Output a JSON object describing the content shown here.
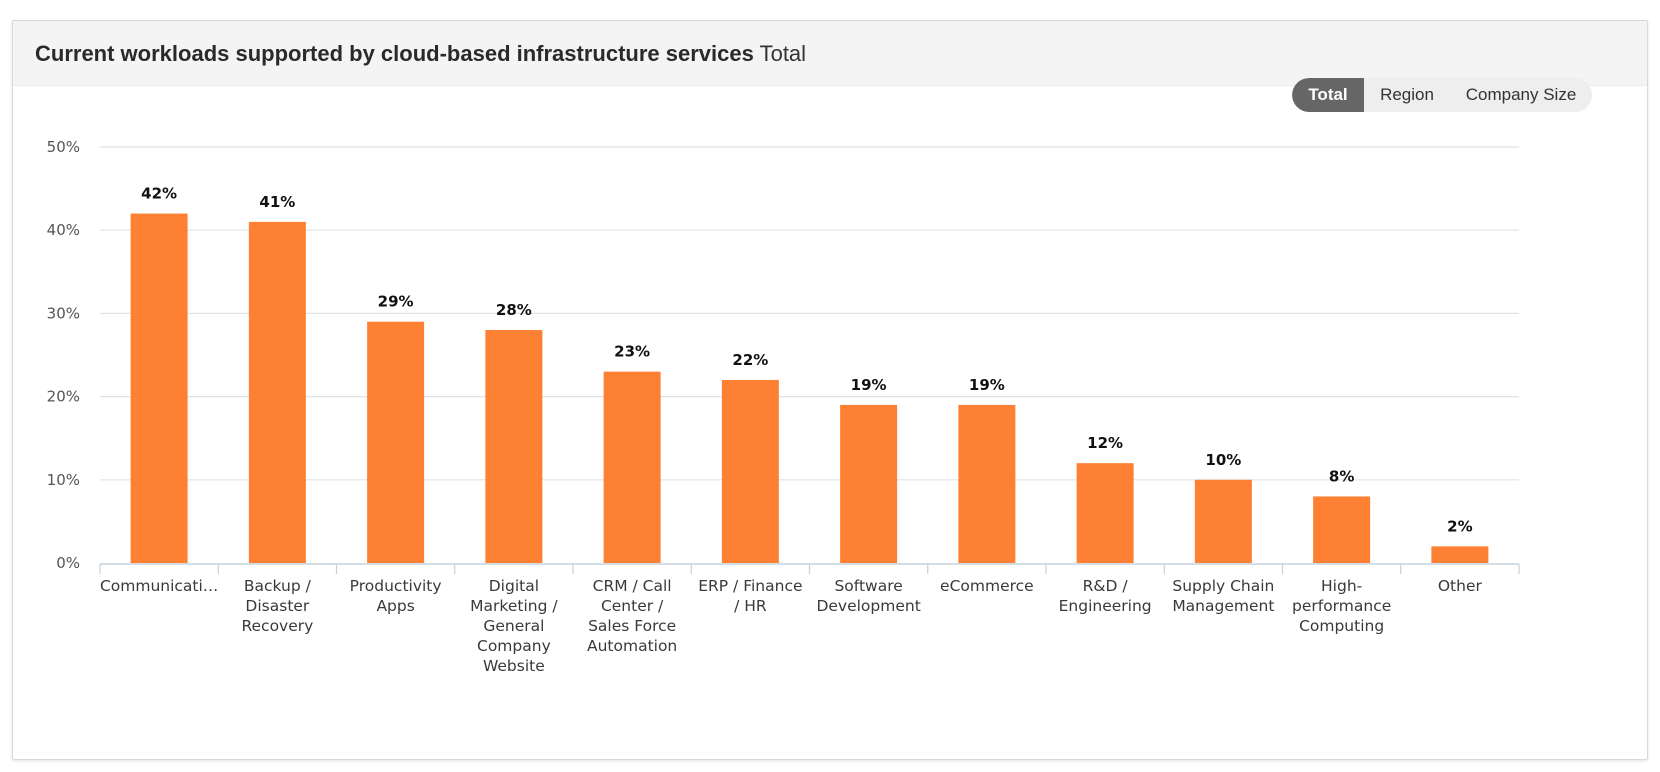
{
  "header": {
    "title": "Current workloads supported by cloud-based infrastructure services",
    "subtitle": "Total"
  },
  "toggle": {
    "options": [
      "Total",
      "Region",
      "Company Size"
    ],
    "selected": "Total"
  },
  "colors": {
    "bar": "#fd8033",
    "grid": "#dfe3e8",
    "axis": "#c6d0dc",
    "active_toggle": "#666666"
  },
  "chart_data": {
    "type": "bar",
    "categories": [
      "Communicati…",
      "Backup / Disaster Recovery",
      "Productivity Apps",
      "Digital Marketing / General Company Website",
      "CRM / Call Center / Sales Force Automation",
      "ERP / Finance / HR",
      "Software Development",
      "eCommerce",
      "R&D / Engineering",
      "Supply Chain Management",
      "High-performance Computing",
      "Other"
    ],
    "category_lines": [
      [
        "Communicati…"
      ],
      [
        "Backup /",
        "Disaster",
        "Recovery"
      ],
      [
        "Productivity",
        "Apps"
      ],
      [
        "Digital",
        "Marketing /",
        "General",
        "Company",
        "Website"
      ],
      [
        "CRM / Call",
        "Center /",
        "Sales Force",
        "Automation"
      ],
      [
        "ERP / Finance",
        "/ HR"
      ],
      [
        "Software",
        "Development"
      ],
      [
        "eCommerce"
      ],
      [
        "R&D /",
        "Engineering"
      ],
      [
        "Supply Chain",
        "Management"
      ],
      [
        "High-",
        "performance",
        "Computing"
      ],
      [
        "Other"
      ]
    ],
    "values": [
      42,
      41,
      29,
      28,
      23,
      22,
      19,
      19,
      12,
      10,
      8,
      2
    ],
    "data_labels": [
      "42%",
      "41%",
      "29%",
      "28%",
      "23%",
      "22%",
      "19%",
      "19%",
      "12%",
      "10%",
      "8%",
      "2%"
    ],
    "yticks": [
      0,
      10,
      20,
      30,
      40,
      50
    ],
    "ytick_labels": [
      "0%",
      "10%",
      "20%",
      "30%",
      "40%",
      "50%"
    ],
    "ylim": [
      0,
      50
    ],
    "grid": true,
    "legend": "none"
  }
}
